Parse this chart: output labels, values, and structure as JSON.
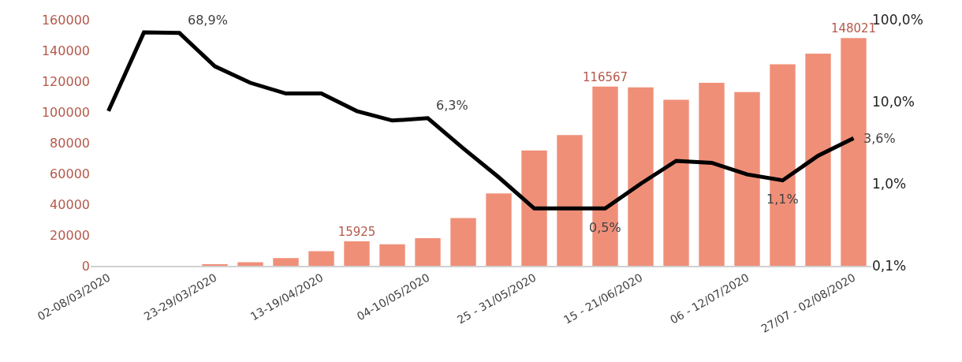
{
  "chart_data": {
    "type": "bar",
    "categories": [
      "02-08/03/2020",
      null,
      null,
      "23-29/03/2020",
      null,
      null,
      "13-19/04/2020",
      null,
      null,
      "04-10/05/2020",
      null,
      null,
      "25 - 31/05/2020",
      null,
      null,
      "15 - 21/06/2020",
      null,
      null,
      "06 - 12/07/2020",
      null,
      null,
      "27/07 - 02/08/2020"
    ],
    "series": [
      {
        "color": "#f08f78",
        "values": [
          0,
          0,
          0,
          800,
          2300,
          5000,
          9500,
          15925,
          14000,
          18000,
          31000,
          47000,
          75000,
          85000,
          116567,
          116000,
          108000,
          119000,
          113000,
          131000,
          138000,
          148021
        ],
        "value_labels": [
          null,
          null,
          null,
          null,
          null,
          null,
          null,
          "15925",
          null,
          null,
          null,
          null,
          null,
          null,
          "116567",
          null,
          null,
          null,
          null,
          null,
          null,
          "148021"
        ]
      },
      {
        "type": "line",
        "axis": "y2",
        "color": "#000000",
        "values": [
          7.7,
          70,
          68.9,
          27,
          17,
          12.6,
          12.6,
          7.7,
          5.9,
          6.3,
          2.7,
          1.2,
          0.5,
          0.5,
          0.5,
          1.0,
          1.9,
          1.8,
          1.3,
          1.1,
          2.2,
          3.6
        ],
        "value_labels": [
          null,
          null,
          "68,9%",
          null,
          null,
          null,
          null,
          null,
          null,
          "6,3%",
          null,
          null,
          null,
          null,
          "0,5%",
          null,
          null,
          null,
          null,
          "1,1%",
          null,
          "3,6%"
        ]
      }
    ],
    "ylim": [
      0,
      160000
    ],
    "yticks": [
      0,
      20000,
      40000,
      60000,
      80000,
      100000,
      120000,
      140000,
      160000
    ],
    "y2lim": [
      0.1,
      100
    ],
    "y2ticks": [
      {
        "value": 0.1,
        "label": "0,1%"
      },
      {
        "value": 1,
        "label": "1,0%"
      },
      {
        "value": 10,
        "label": "10,0%"
      },
      {
        "value": 100,
        "label": "100,0%"
      }
    ],
    "log": "y2",
    "legend": false,
    "marker": "none",
    "line_style": "solid"
  }
}
